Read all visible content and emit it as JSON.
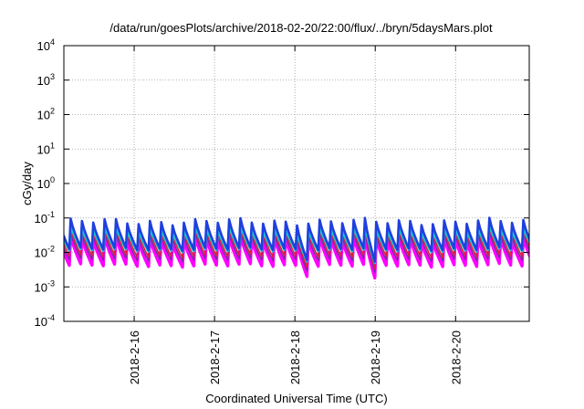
{
  "chart_data": {
    "type": "line",
    "title": "/data/run/goesPlots/archive/2018-02-20/22:00/flux/../bryn/5daysMars.plot",
    "xlabel": "Coordinated Universal Time (UTC)",
    "ylabel": "cGy/day",
    "yscale": "log",
    "ylim": [
      0.0001,
      10000
    ],
    "xlim": [
      "2018-02-15 03:00",
      "2018-02-20 22:00"
    ],
    "grid": true,
    "legend": "none",
    "y_ticks": [
      {
        "value": 0.0001,
        "base": "10",
        "exp": "-4"
      },
      {
        "value": 0.001,
        "base": "10",
        "exp": "-3"
      },
      {
        "value": 0.01,
        "base": "10",
        "exp": "-2"
      },
      {
        "value": 0.1,
        "base": "10",
        "exp": "-1"
      },
      {
        "value": 1,
        "base": "10",
        "exp": "0"
      },
      {
        "value": 10,
        "base": "10",
        "exp": "1"
      },
      {
        "value": 100,
        "base": "10",
        "exp": "2"
      },
      {
        "value": 1000,
        "base": "10",
        "exp": "3"
      },
      {
        "value": 10000,
        "base": "10",
        "exp": "4"
      }
    ],
    "x_ticks": [
      "2018-2-16",
      "2018-2-17",
      "2018-2-18",
      "2018-2-19",
      "2018-2-20"
    ],
    "colors": {
      "blue": "#1f3fe0",
      "cyan": "#19c8d0",
      "purple": "#7a2aa8",
      "magenta": "#ff00ff",
      "red": "#e0203a",
      "grid": "#9a9a9a"
    },
    "series_envelope": {
      "description_of_pattern": "sawtooth, about 7 cycles per day",
      "cycles_per_day": 7.1,
      "upper_peak_approx": 0.08,
      "upper_trough_approx": 0.012,
      "lower_peak_approx": 0.025,
      "lower_trough_approx": 0.004,
      "dips": [
        {
          "time": "2018-02-18 02:30",
          "min": 0.005
        },
        {
          "time": "2018-02-19 00:00",
          "min": 0.0045
        }
      ]
    },
    "series": [
      {
        "color": "blue",
        "peak": 0.078,
        "trough": 0.0125
      },
      {
        "color": "cyan",
        "peak": 0.052,
        "trough": 0.0115
      },
      {
        "color": "red",
        "peak": 0.042,
        "trough": 0.0078
      },
      {
        "color": "purple",
        "peak": 0.032,
        "trough": 0.0062
      },
      {
        "color": "magenta",
        "peak": 0.026,
        "trough": 0.0042
      }
    ]
  }
}
